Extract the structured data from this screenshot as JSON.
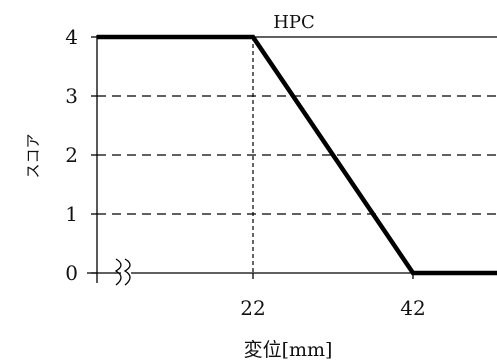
{
  "chart_data": {
    "type": "line",
    "title": "HPC",
    "xlabel": "変位[mm]",
    "ylabel": "スコア",
    "x_ticks": [
      22,
      42
    ],
    "y_ticks": [
      0,
      1,
      2,
      3,
      4
    ],
    "xlim": [
      2.5,
      52.5
    ],
    "ylim": [
      0,
      4
    ],
    "dashed_gridlines_y": [
      1,
      2,
      3
    ],
    "reference_line_x": 22,
    "axis_break": true,
    "series": [
      {
        "points": [
          [
            2.5,
            4
          ],
          [
            22,
            4
          ],
          [
            42,
            0
          ],
          [
            52.5,
            0
          ]
        ]
      }
    ],
    "colors": {
      "line": "#000000",
      "text": "#111111"
    }
  }
}
